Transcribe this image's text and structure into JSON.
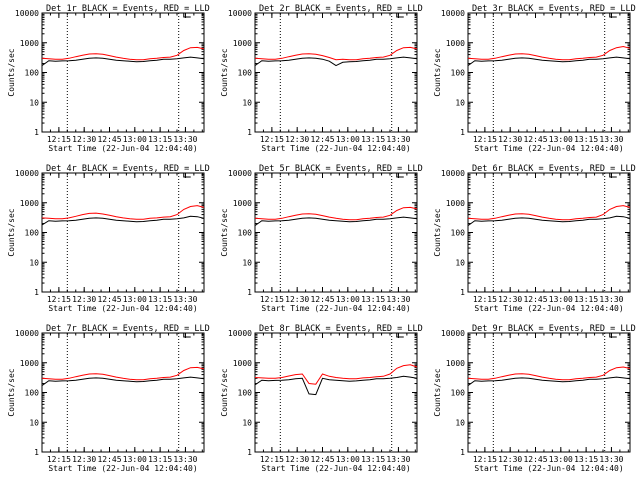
{
  "chart_data": {
    "type": "line",
    "title_suffix": "BLACK = Events, RED = LLD",
    "xlabel": "Start Time (22-Jun-04 12:04:40)",
    "ylabel": "Counts/sec",
    "y_scale": "log",
    "ylim": [
      1,
      10000
    ],
    "xlim_minutes": [
      0,
      96
    ],
    "yticks": [
      "1",
      "10",
      "100",
      "1000",
      "10000"
    ],
    "xticks": [
      "12:15",
      "12:30",
      "12:45",
      "13:00",
      "13:15",
      "13:30"
    ],
    "xtick_minutes": [
      10,
      25,
      40,
      55,
      70,
      85
    ],
    "vlines_minutes": [
      15,
      81
    ],
    "x_minutes": [
      0,
      4,
      8,
      12,
      16,
      20,
      24,
      28,
      32,
      36,
      40,
      44,
      48,
      52,
      56,
      60,
      64,
      68,
      72,
      76,
      80,
      84,
      88,
      92,
      96
    ],
    "series_colors": {
      "black": "#000000",
      "red": "#ff0000"
    },
    "panels": [
      {
        "title": "Det 1r",
        "black": [
          170,
          250,
          240,
          245,
          250,
          260,
          280,
          300,
          310,
          300,
          280,
          260,
          250,
          240,
          230,
          235,
          250,
          260,
          280,
          280,
          290,
          310,
          330,
          310,
          290
        ],
        "red": [
          300,
          290,
          280,
          280,
          300,
          340,
          380,
          420,
          430,
          410,
          370,
          330,
          300,
          280,
          270,
          270,
          290,
          300,
          320,
          330,
          380,
          550,
          680,
          700,
          620
        ]
      },
      {
        "title": "Det 2r",
        "black": [
          170,
          250,
          240,
          245,
          250,
          260,
          280,
          300,
          310,
          300,
          280,
          240,
          170,
          220,
          230,
          235,
          250,
          260,
          280,
          280,
          290,
          310,
          330,
          310,
          290
        ],
        "red": [
          300,
          290,
          280,
          280,
          300,
          340,
          380,
          420,
          430,
          410,
          370,
          320,
          270,
          280,
          270,
          270,
          290,
          300,
          320,
          330,
          380,
          550,
          680,
          700,
          620
        ]
      },
      {
        "title": "Det 3r",
        "black": [
          170,
          250,
          240,
          245,
          250,
          260,
          280,
          300,
          310,
          300,
          280,
          260,
          250,
          240,
          230,
          235,
          250,
          260,
          280,
          280,
          290,
          310,
          330,
          310,
          290
        ],
        "red": [
          300,
          290,
          280,
          280,
          300,
          340,
          380,
          420,
          430,
          410,
          370,
          330,
          300,
          280,
          270,
          270,
          290,
          300,
          320,
          330,
          380,
          550,
          680,
          750,
          650
        ]
      },
      {
        "title": "Det 4r",
        "black": [
          180,
          250,
          240,
          245,
          250,
          260,
          280,
          300,
          310,
          300,
          280,
          260,
          250,
          240,
          230,
          235,
          250,
          260,
          280,
          280,
          290,
          310,
          350,
          340,
          300
        ],
        "red": [
          310,
          300,
          290,
          290,
          310,
          350,
          400,
          440,
          450,
          420,
          380,
          340,
          310,
          290,
          280,
          280,
          300,
          310,
          330,
          340,
          400,
          600,
          750,
          800,
          700
        ]
      },
      {
        "title": "Det 5r",
        "black": [
          170,
          250,
          240,
          245,
          250,
          260,
          280,
          300,
          310,
          300,
          280,
          260,
          250,
          240,
          230,
          235,
          250,
          260,
          280,
          280,
          290,
          310,
          330,
          310,
          290
        ],
        "red": [
          300,
          290,
          280,
          280,
          300,
          340,
          380,
          420,
          430,
          410,
          370,
          330,
          300,
          280,
          270,
          270,
          290,
          300,
          320,
          330,
          380,
          550,
          680,
          700,
          620
        ]
      },
      {
        "title": "Det 6r",
        "black": [
          170,
          250,
          240,
          245,
          250,
          260,
          280,
          300,
          310,
          300,
          280,
          260,
          250,
          240,
          230,
          235,
          250,
          260,
          280,
          280,
          290,
          310,
          350,
          340,
          300
        ],
        "red": [
          300,
          290,
          280,
          280,
          300,
          340,
          380,
          420,
          430,
          410,
          370,
          330,
          300,
          280,
          270,
          270,
          290,
          300,
          320,
          330,
          400,
          600,
          750,
          800,
          700
        ]
      },
      {
        "title": "Det 7r",
        "black": [
          170,
          250,
          240,
          245,
          250,
          260,
          280,
          300,
          310,
          300,
          280,
          260,
          250,
          240,
          230,
          235,
          250,
          260,
          280,
          280,
          290,
          310,
          330,
          310,
          290
        ],
        "red": [
          300,
          290,
          280,
          280,
          300,
          340,
          380,
          420,
          430,
          410,
          370,
          330,
          300,
          280,
          270,
          270,
          290,
          300,
          320,
          330,
          380,
          550,
          680,
          700,
          620
        ]
      },
      {
        "title": "Det 8r",
        "black": [
          180,
          260,
          250,
          255,
          260,
          270,
          290,
          300,
          90,
          85,
          300,
          270,
          260,
          250,
          240,
          245,
          260,
          270,
          290,
          290,
          300,
          320,
          350,
          330,
          300
        ],
        "red": [
          320,
          310,
          300,
          300,
          320,
          360,
          400,
          420,
          200,
          190,
          420,
          350,
          320,
          300,
          290,
          290,
          310,
          320,
          340,
          350,
          420,
          650,
          800,
          850,
          720
        ]
      },
      {
        "title": "Det 9r",
        "black": [
          170,
          250,
          240,
          245,
          250,
          260,
          280,
          300,
          310,
          300,
          280,
          260,
          250,
          240,
          230,
          235,
          250,
          260,
          280,
          280,
          290,
          310,
          330,
          310,
          290
        ],
        "red": [
          300,
          290,
          280,
          280,
          300,
          340,
          380,
          420,
          430,
          410,
          370,
          330,
          300,
          280,
          270,
          270,
          290,
          300,
          320,
          330,
          380,
          550,
          680,
          720,
          640
        ]
      }
    ]
  }
}
